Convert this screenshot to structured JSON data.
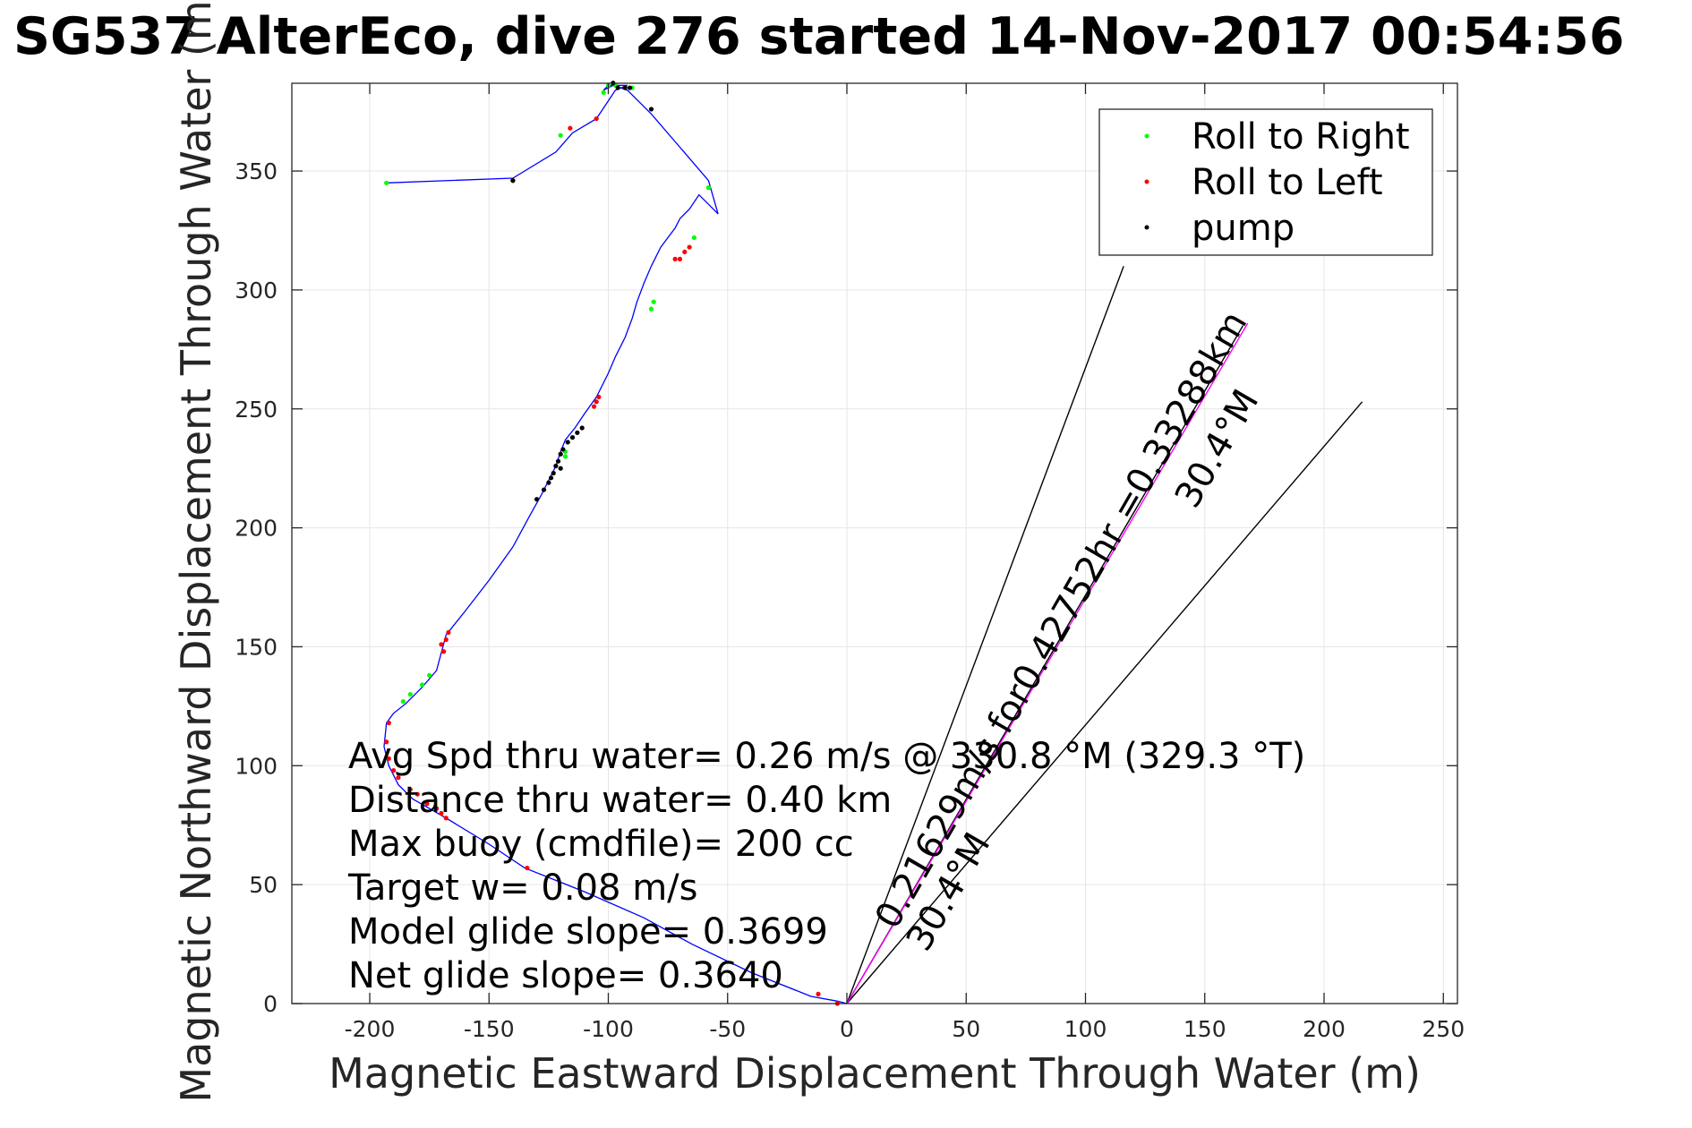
{
  "chart_data": {
    "type": "line",
    "title": "SG537 AlterEco, dive 276 started 14-Nov-2017 00:54:56",
    "xlabel": "Magnetic Eastward Displacement Through Water (m)",
    "ylabel": "Magnetic Northward Displacement Through Water (m)",
    "xlim": [
      -230,
      255
    ],
    "ylim": [
      0,
      387
    ],
    "x_ticks": [
      -200,
      -150,
      -100,
      -50,
      0,
      50,
      100,
      150,
      200,
      250
    ],
    "y_ticks": [
      0,
      50,
      100,
      150,
      200,
      250,
      300,
      350
    ],
    "grid": true,
    "legend_position": "top-right",
    "track": {
      "color": "#0000ff",
      "x": [
        0,
        -4,
        -15,
        -40,
        -65,
        -85,
        -110,
        -135,
        -150,
        -168,
        -175,
        -182,
        -188,
        -192,
        -194,
        -193,
        -190,
        -185,
        -178,
        -172,
        -168,
        -160,
        -150,
        -140,
        -133,
        -128,
        -125,
        -122,
        -120,
        -118,
        -114,
        -110,
        -105,
        -100,
        -97,
        -93,
        -90,
        -88,
        -85,
        -82,
        -80,
        -78,
        -75,
        -72,
        -70,
        -66,
        -62,
        -54,
        -58,
        -70,
        -82,
        -92,
        -98,
        -100,
        -102,
        -100,
        -98,
        -95,
        -92,
        -97,
        -105,
        -115,
        -122,
        -140,
        -193
      ],
      "y": [
        0,
        1,
        3,
        13,
        25,
        36,
        47,
        57,
        67,
        78,
        82,
        86,
        92,
        100,
        108,
        118,
        122,
        126,
        133,
        140,
        155,
        165,
        178,
        192,
        205,
        214,
        220,
        226,
        232,
        237,
        242,
        248,
        255,
        265,
        272,
        280,
        288,
        295,
        303,
        310,
        314,
        318,
        322,
        326,
        330,
        334,
        340,
        332,
        346,
        360,
        374,
        384,
        386,
        385,
        384,
        386,
        386,
        386,
        386,
        384,
        372,
        366,
        358,
        347,
        345
      ]
    },
    "series": [
      {
        "name": "Roll to Right",
        "color": "#00ff00",
        "x": [
          -193,
          -140,
          -120,
          -118,
          -118,
          -120,
          -102,
          -100,
          -97,
          -90,
          -82,
          -81,
          -64,
          -58,
          -175,
          -178,
          -183,
          -186
        ],
        "y": [
          345,
          346,
          365,
          230,
          232,
          225,
          383,
          386,
          386,
          385,
          292,
          295,
          322,
          343,
          138,
          134,
          130,
          127
        ]
      },
      {
        "name": "Roll to Left",
        "color": "#ff0000",
        "x": [
          -4,
          -12,
          -134,
          -168,
          -170,
          -172,
          -176,
          -180,
          -183,
          -188,
          -190,
          -192,
          -193,
          -192,
          -170,
          -168,
          -167,
          -169,
          -106,
          -105,
          -104,
          -72,
          -70,
          -68,
          -66,
          -140,
          -116,
          -105
        ],
        "y": [
          0,
          4,
          57,
          78,
          80,
          82,
          84,
          88,
          90,
          95,
          98,
          103,
          110,
          118,
          151,
          153,
          156,
          148,
          251,
          253,
          255,
          313,
          313,
          316,
          318,
          346,
          368,
          372
        ]
      },
      {
        "name": "pump",
        "color": "#000000",
        "x": [
          -130,
          -127,
          -125,
          -124,
          -123,
          -122,
          -121,
          -120,
          -119,
          -117,
          -115,
          -113,
          -111,
          -98,
          -96,
          -93,
          -91,
          -82,
          -140,
          -120
        ],
        "y": [
          212,
          216,
          219,
          221,
          223,
          226,
          228,
          231,
          233,
          236,
          238,
          240,
          242,
          387,
          385,
          385,
          385,
          376,
          346,
          225
        ]
      }
    ],
    "reference_lines": [
      {
        "color": "#000000",
        "x": [
          0,
          116
        ],
        "y": [
          0,
          310
        ]
      },
      {
        "color": "#000000",
        "x": [
          0,
          216
        ],
        "y": [
          0,
          253
        ]
      },
      {
        "color": "#000000",
        "x": [
          0,
          166
        ],
        "y": [
          0,
          285
        ]
      },
      {
        "color": "#ff00ff",
        "x": [
          0,
          168
        ],
        "y": [
          0,
          286
        ]
      }
    ],
    "annotations": [
      "Avg Spd thru water=  0.26 m/s @ 330.8 °M (329.3 °T)",
      "Distance thru water=  0.40 km",
      "Max buoy (cmdfile)= 200 cc",
      "Target w= 0.08 m/s",
      "Model glide slope= 0.3699",
      "Net glide slope= 0.3640"
    ],
    "rotated_labels": [
      "0.21629m/s for0.42752hr =0.33288km",
      "30.4°M",
      "30.4°M"
    ]
  }
}
